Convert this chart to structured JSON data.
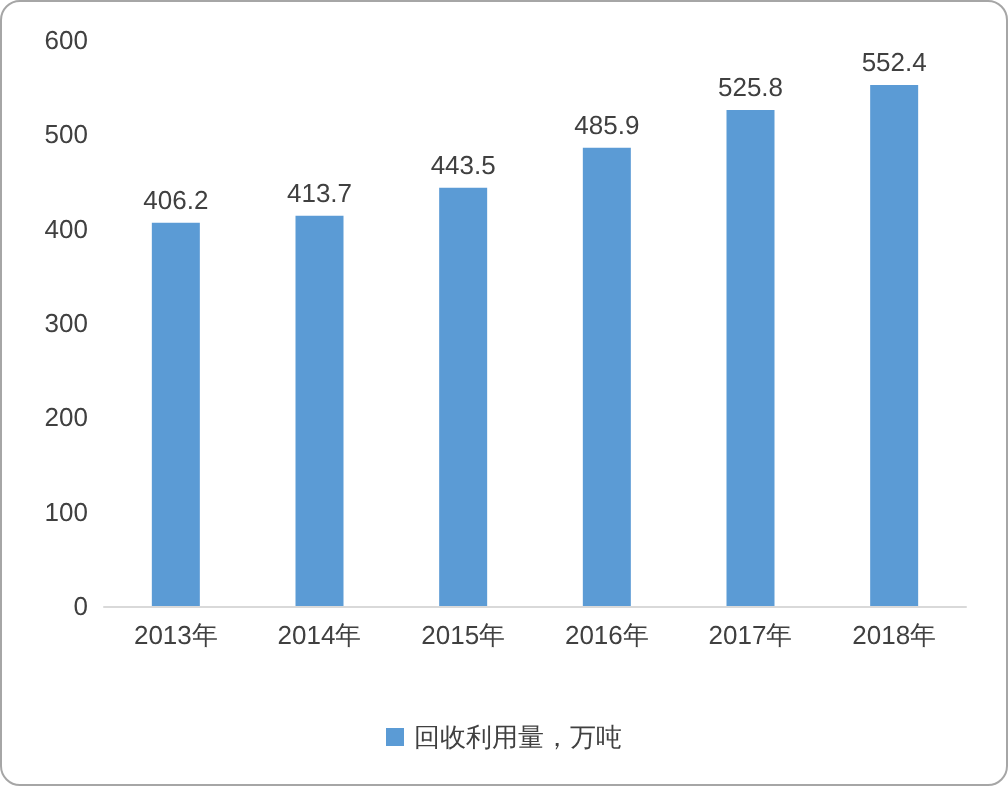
{
  "chart_data": {
    "type": "bar",
    "categories": [
      "2013年",
      "2014年",
      "2015年",
      "2016年",
      "2017年",
      "2018年"
    ],
    "series": [
      {
        "name": "回收利用量，万吨",
        "color": "#5b9bd5",
        "values": [
          406.2,
          413.7,
          443.5,
          485.9,
          525.8,
          552.4
        ]
      }
    ],
    "ylim": [
      0,
      600
    ],
    "yticks": [
      0,
      100,
      200,
      300,
      400,
      500,
      600
    ],
    "data_labels": true,
    "grid": false,
    "legend": "bottom"
  }
}
